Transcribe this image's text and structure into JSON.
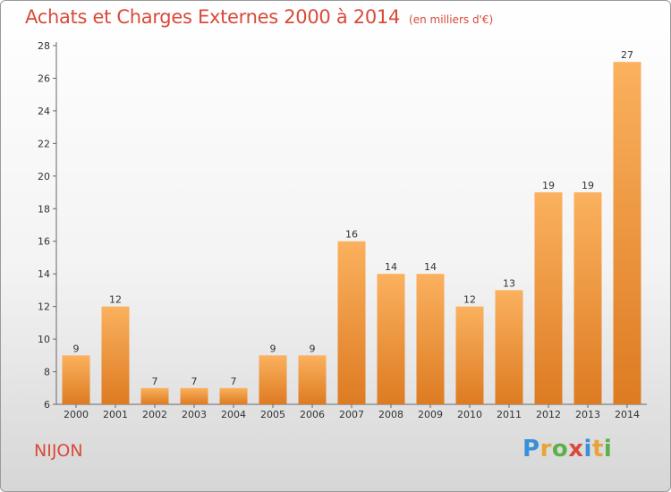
{
  "header": {
    "title": "Achats et Charges Externes 2000 à 2014",
    "unit": "(en milliers d'€)"
  },
  "footer": {
    "commune": "NIJON",
    "logo_text": "Proxiti",
    "logo_colors": [
      "#3a8fd9",
      "#e8a33a",
      "#5bb04a",
      "#d94a39",
      "#3a8fd9",
      "#e8a33a",
      "#5bb04a"
    ]
  },
  "colors": {
    "bar_light": "#fbb15e",
    "bar_dark": "#dd7b22",
    "accent": "#d94a39",
    "text": "#333333"
  },
  "chart_data": {
    "type": "bar",
    "categories": [
      "2000",
      "2001",
      "2002",
      "2003",
      "2004",
      "2005",
      "2006",
      "2007",
      "2008",
      "2009",
      "2010",
      "2011",
      "2012",
      "2013",
      "2014"
    ],
    "values": [
      9,
      12,
      7,
      7,
      7,
      9,
      9,
      16,
      14,
      14,
      12,
      13,
      19,
      19,
      27
    ],
    "ylim": [
      6,
      28
    ],
    "yticks": [
      6,
      8,
      10,
      12,
      14,
      16,
      18,
      20,
      22,
      24,
      26,
      28
    ],
    "grid": false,
    "data_labels": true
  }
}
